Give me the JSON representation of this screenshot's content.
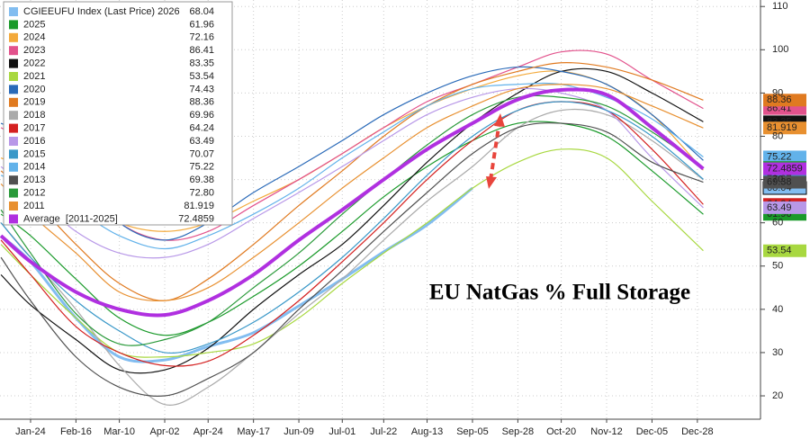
{
  "chart_data": {
    "type": "line",
    "annotation": "EU NatGas % Full Storage",
    "x": [
      9,
      24,
      47,
      69,
      92,
      114,
      137,
      160,
      182,
      203,
      225,
      248,
      271,
      293,
      316,
      339,
      365
    ],
    "xlim": [
      8.5,
      394
    ],
    "xticks": [
      {
        "value": 24,
        "label": "Jan-24"
      },
      {
        "value": 47,
        "label": "Feb-16"
      },
      {
        "value": 69,
        "label": "Mar-10"
      },
      {
        "value": 92,
        "label": "Apr-02"
      },
      {
        "value": 114,
        "label": "Apr-24"
      },
      {
        "value": 137,
        "label": "May-17"
      },
      {
        "value": 160,
        "label": "Jun-09"
      },
      {
        "value": 182,
        "label": "Jul-01"
      },
      {
        "value": 203,
        "label": "Jul-22"
      },
      {
        "value": 225,
        "label": "Aug-13"
      },
      {
        "value": 248,
        "label": "Sep-05"
      },
      {
        "value": 271,
        "label": "Sep-28"
      },
      {
        "value": 293,
        "label": "Oct-20"
      },
      {
        "value": 316,
        "label": "Nov-12"
      },
      {
        "value": 339,
        "label": "Dec-05"
      },
      {
        "value": 362,
        "label": "Dec-28"
      }
    ],
    "ylim": [
      14.6,
      111.5
    ],
    "yticks": [
      20,
      30,
      40,
      50,
      60,
      70,
      80,
      90,
      100,
      110
    ],
    "grid": true,
    "legend": "top-left",
    "series": [
      {
        "name": "CGIEEUFU Index (Last Price) 2026",
        "last_label": "68.04",
        "color": "#82bdf0",
        "width": 3,
        "values": [
          57,
          51,
          38,
          29,
          28.3,
          31.4,
          34.6,
          40.8,
          47,
          53.3,
          59.5,
          68.04,
          null,
          null,
          null,
          null,
          null
        ]
      },
      {
        "name": "2025",
        "last_label": "61.96",
        "color": "#1a9a2a",
        "width": 1.2,
        "values": [
          62,
          57,
          47,
          38,
          34,
          37,
          43,
          50,
          58,
          66,
          73,
          79,
          83,
          83,
          80,
          72,
          61.96
        ]
      },
      {
        "name": "2024",
        "last_label": "72.16",
        "color": "#f3a93a",
        "width": 1.2,
        "values": [
          75,
          72,
          66,
          60,
          58,
          60,
          65,
          70,
          76,
          82,
          87,
          91,
          94,
          95,
          92,
          85,
          72.16
        ]
      },
      {
        "name": "2023",
        "last_label": "86.41",
        "color": "#e2528c",
        "width": 1.2,
        "values": [
          82,
          78,
          70,
          60,
          56,
          58,
          64,
          70,
          76,
          82,
          88,
          92,
          96,
          99.5,
          99,
          93,
          86.41
        ]
      },
      {
        "name": "2022",
        "last_label": "83.35",
        "color": "#111111",
        "width": 1.2,
        "values": [
          48,
          41,
          33,
          26,
          26,
          31,
          40,
          48,
          55,
          64,
          74,
          83,
          90,
          95,
          95,
          90,
          83.35
        ]
      },
      {
        "name": "2021",
        "last_label": "53.54",
        "color": "#a8d840",
        "width": 1.2,
        "values": [
          55,
          48,
          38,
          30,
          29,
          30,
          32,
          38,
          46,
          53,
          60,
          68,
          74,
          77,
          75,
          65,
          53.54
        ]
      },
      {
        "name": "2020",
        "last_label": "74.43",
        "color": "#2a6ab8",
        "width": 1.2,
        "values": [
          83,
          80,
          71,
          60,
          56,
          60,
          67,
          73,
          79,
          85,
          90,
          94,
          96,
          95,
          92,
          85,
          74.43
        ]
      },
      {
        "name": "2019",
        "last_label": "88.36",
        "color": "#e07a20",
        "width": 1.2,
        "values": [
          72,
          66,
          55,
          46,
          42,
          47,
          55,
          64,
          72,
          80,
          87,
          92,
          95,
          97,
          96,
          93,
          88.36
        ]
      },
      {
        "name": "2018",
        "last_label": "69.96",
        "color": "#aaaaaa",
        "width": 1.2,
        "values": [
          60,
          52,
          40,
          27,
          18,
          22,
          30,
          39,
          47,
          56,
          65,
          73,
          82,
          86,
          85,
          79,
          69.96
        ]
      },
      {
        "name": "2017",
        "last_label": "64.24",
        "color": "#d42020",
        "width": 1.2,
        "values": [
          56,
          48,
          36,
          30,
          27,
          28,
          34,
          42,
          51,
          60,
          70,
          79,
          86,
          88,
          86,
          77,
          64.24
        ]
      },
      {
        "name": "2016",
        "last_label": "63.49",
        "color": "#b898e8",
        "width": 1.2,
        "values": [
          73,
          67,
          58,
          53,
          52,
          55,
          61,
          67,
          73,
          79,
          85,
          89,
          91,
          90,
          86,
          75,
          63.49
        ]
      },
      {
        "name": "2015",
        "last_label": "70.07",
        "color": "#3a98c8",
        "width": 1.2,
        "values": [
          60,
          52,
          42,
          35,
          30,
          32,
          37,
          44,
          52,
          61,
          71,
          80,
          86,
          88,
          86,
          80,
          70.07
        ]
      },
      {
        "name": "2014",
        "last_label": "75.22",
        "color": "#62b2ea",
        "width": 1.2,
        "values": [
          71,
          68,
          63,
          57,
          54,
          57,
          62,
          68,
          75,
          81,
          87,
          91,
          92,
          92,
          89,
          84,
          75.22
        ]
      },
      {
        "name": "2013",
        "last_label": "69.38",
        "color": "#505050",
        "width": 1.2,
        "values": [
          52,
          42,
          29,
          22,
          20,
          24,
          30,
          40,
          49,
          58,
          67,
          76,
          82,
          83,
          81,
          74,
          69.38
        ]
      },
      {
        "name": "2012",
        "last_label": "72.80",
        "color": "#2a9a3a",
        "width": 1.2,
        "values": [
          63,
          53,
          39,
          32,
          33,
          37,
          45,
          53,
          62,
          70,
          78,
          85,
          89,
          89,
          87,
          81,
          72.8
        ]
      },
      {
        "name": "2011",
        "last_label": "81.919",
        "color": "#e89030",
        "width": 1.2,
        "values": [
          69,
          62,
          53,
          44,
          42,
          45,
          52,
          60,
          68,
          75,
          82,
          87,
          91,
          92,
          91,
          87,
          81.919
        ]
      },
      {
        "name": "Average  [2011-2025]",
        "last_label": "72.4859",
        "color": "#b030e0",
        "width": 4,
        "values": [
          57,
          51,
          44,
          40,
          38.7,
          42,
          48,
          56,
          63,
          70,
          77,
          83,
          88.5,
          90.7,
          89.6,
          82,
          72.4859
        ]
      }
    ]
  }
}
